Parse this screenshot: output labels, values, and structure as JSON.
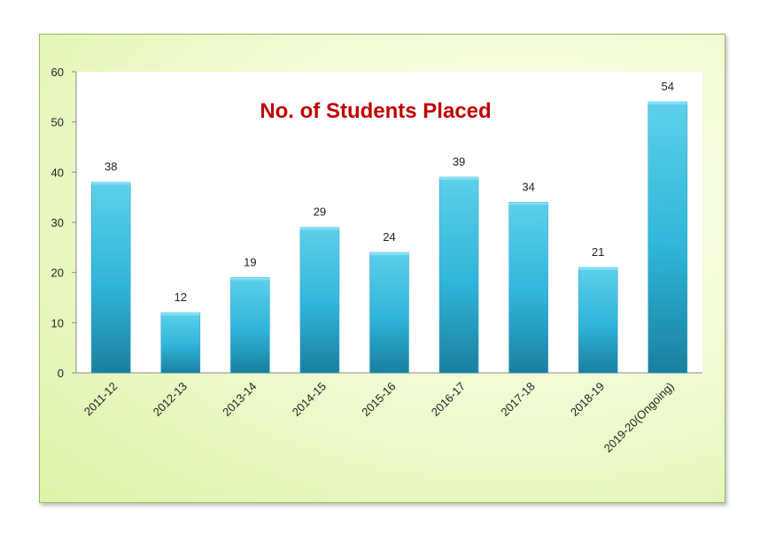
{
  "chart_data": {
    "type": "bar",
    "title": "No. of Students Placed",
    "categories": [
      "2011-12",
      "2012-13",
      "2013-14",
      "2014-15",
      "2015-16",
      "2016-17",
      "2017-18",
      "2018-19",
      "2019-20(Ongoing)"
    ],
    "values": [
      38,
      12,
      19,
      29,
      24,
      39,
      34,
      21,
      54
    ],
    "xlabel": "",
    "ylabel": "",
    "ylim": [
      0,
      60
    ],
    "yticks": [
      "0",
      "10",
      "20",
      "30",
      "40",
      "50",
      "60"
    ],
    "grid": false,
    "legend": "none",
    "colors": {
      "bar_top": "#5dd0ec",
      "bar_mid": "#2fb4d8",
      "bar_bottom": "#1a7fa0",
      "title": "#c00000",
      "frame_border": "#8fbf5a"
    }
  }
}
